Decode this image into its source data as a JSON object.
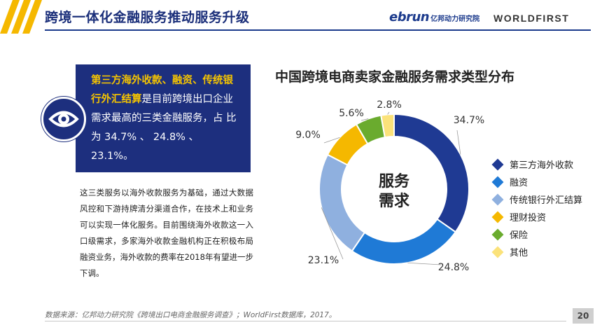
{
  "header": {
    "title": "跨境一体化金融服务推动服务升级",
    "brand_ebrun": "ebrun",
    "brand_cn": "亿邦动力研究院",
    "brand_worldfirst": "WORLDFIRST"
  },
  "callout": {
    "highlight_1": "第三方海外收款、融资、传统银行外汇结算",
    "text_1": "是目前跨境出口企业需求最高的三类金融服务，占 比 为 34.7% 、 24.8% 、 23.1%。"
  },
  "paragraph": "这三类服务以海外收款服务为基础，通过大数据风控和下游持牌清分渠道合作，在技术上和业务可以实现一体化服务。目前围绕海外收款这一入口级需求，多家海外收款金融机构正在积极布局融资业务，海外收款的费率在2018年有望进一步下调。",
  "chart_data": {
    "type": "pie",
    "title": "中国跨境电商卖家金融服务需求类型分布",
    "center_label": [
      "服务",
      "需求"
    ],
    "categories": [
      "第三方海外收款",
      "融资",
      "传统银行外汇结算",
      "理财投资",
      "保险",
      "其他"
    ],
    "values": [
      34.7,
      24.8,
      23.1,
      9.0,
      5.6,
      2.8
    ],
    "value_labels": [
      "34.7%",
      "24.8%",
      "23.1%",
      "9.0%",
      "5.6%",
      "2.8%"
    ],
    "colors": [
      "#1f3a93",
      "#1f7ad6",
      "#8fb0df",
      "#f5b800",
      "#6aab2e",
      "#fbe27a"
    ],
    "legend_position": "right"
  },
  "footer": {
    "source": "数据来源：亿邦动力研究院《跨境出口电商金融服务调查》；WorldFirst数据库，2017。",
    "page_number": "20"
  }
}
